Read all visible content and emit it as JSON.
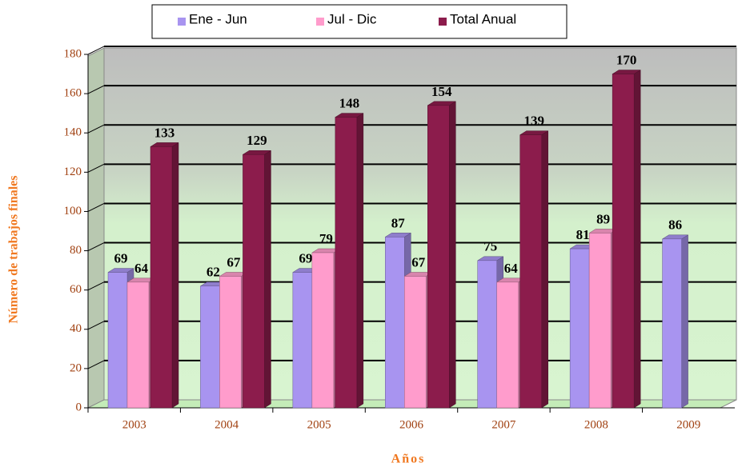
{
  "chart_data": {
    "type": "bar3d",
    "xlabel": "Años",
    "ylabel": "Número de trabajos finales",
    "categories": [
      "2003",
      "2004",
      "2005",
      "2006",
      "2007",
      "2008",
      "2009"
    ],
    "series": [
      {
        "name": "Ene - Jun",
        "color": "#a894f0",
        "values": [
          69,
          62,
          69,
          87,
          75,
          81,
          86
        ]
      },
      {
        "name": "Jul - Dic",
        "color": "#ff9ccc",
        "values": [
          64,
          67,
          79,
          67,
          64,
          89,
          null
        ]
      },
      {
        "name": "Total Anual",
        "color": "#8c1c4c",
        "values": [
          133,
          129,
          148,
          154,
          139,
          170,
          null
        ]
      }
    ],
    "ylim": [
      0,
      180
    ],
    "yticks": [
      0,
      20,
      40,
      60,
      80,
      100,
      120,
      140,
      160,
      180
    ],
    "grid": true,
    "legend": "top"
  }
}
